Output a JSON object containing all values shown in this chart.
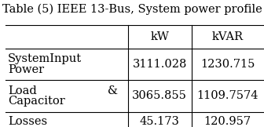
{
  "title": "Table (5) IEEE 13-Bus, System power profile",
  "col_headers": [
    "kW",
    "kVAR"
  ],
  "rows": [
    {
      "label_line1": "SystemInput",
      "label_line2": "Power",
      "label_suffix": "",
      "kw": "3111.028",
      "kvar": "1230.715"
    },
    {
      "label_line1": "Load",
      "label_line2": "Capacitor",
      "label_suffix": "&",
      "kw": "3065.855",
      "kvar": "1109.7574"
    },
    {
      "label_line1": "Losses",
      "label_line2": "",
      "label_suffix": "",
      "kw": "45.173",
      "kvar": "120.957"
    }
  ],
  "background_color": "#ffffff",
  "text_color": "#000000",
  "line_color": "#000000",
  "title_fontsize": 10.5,
  "header_fontsize": 10.5,
  "cell_fontsize": 10.5,
  "font_family": "DejaVu Serif"
}
